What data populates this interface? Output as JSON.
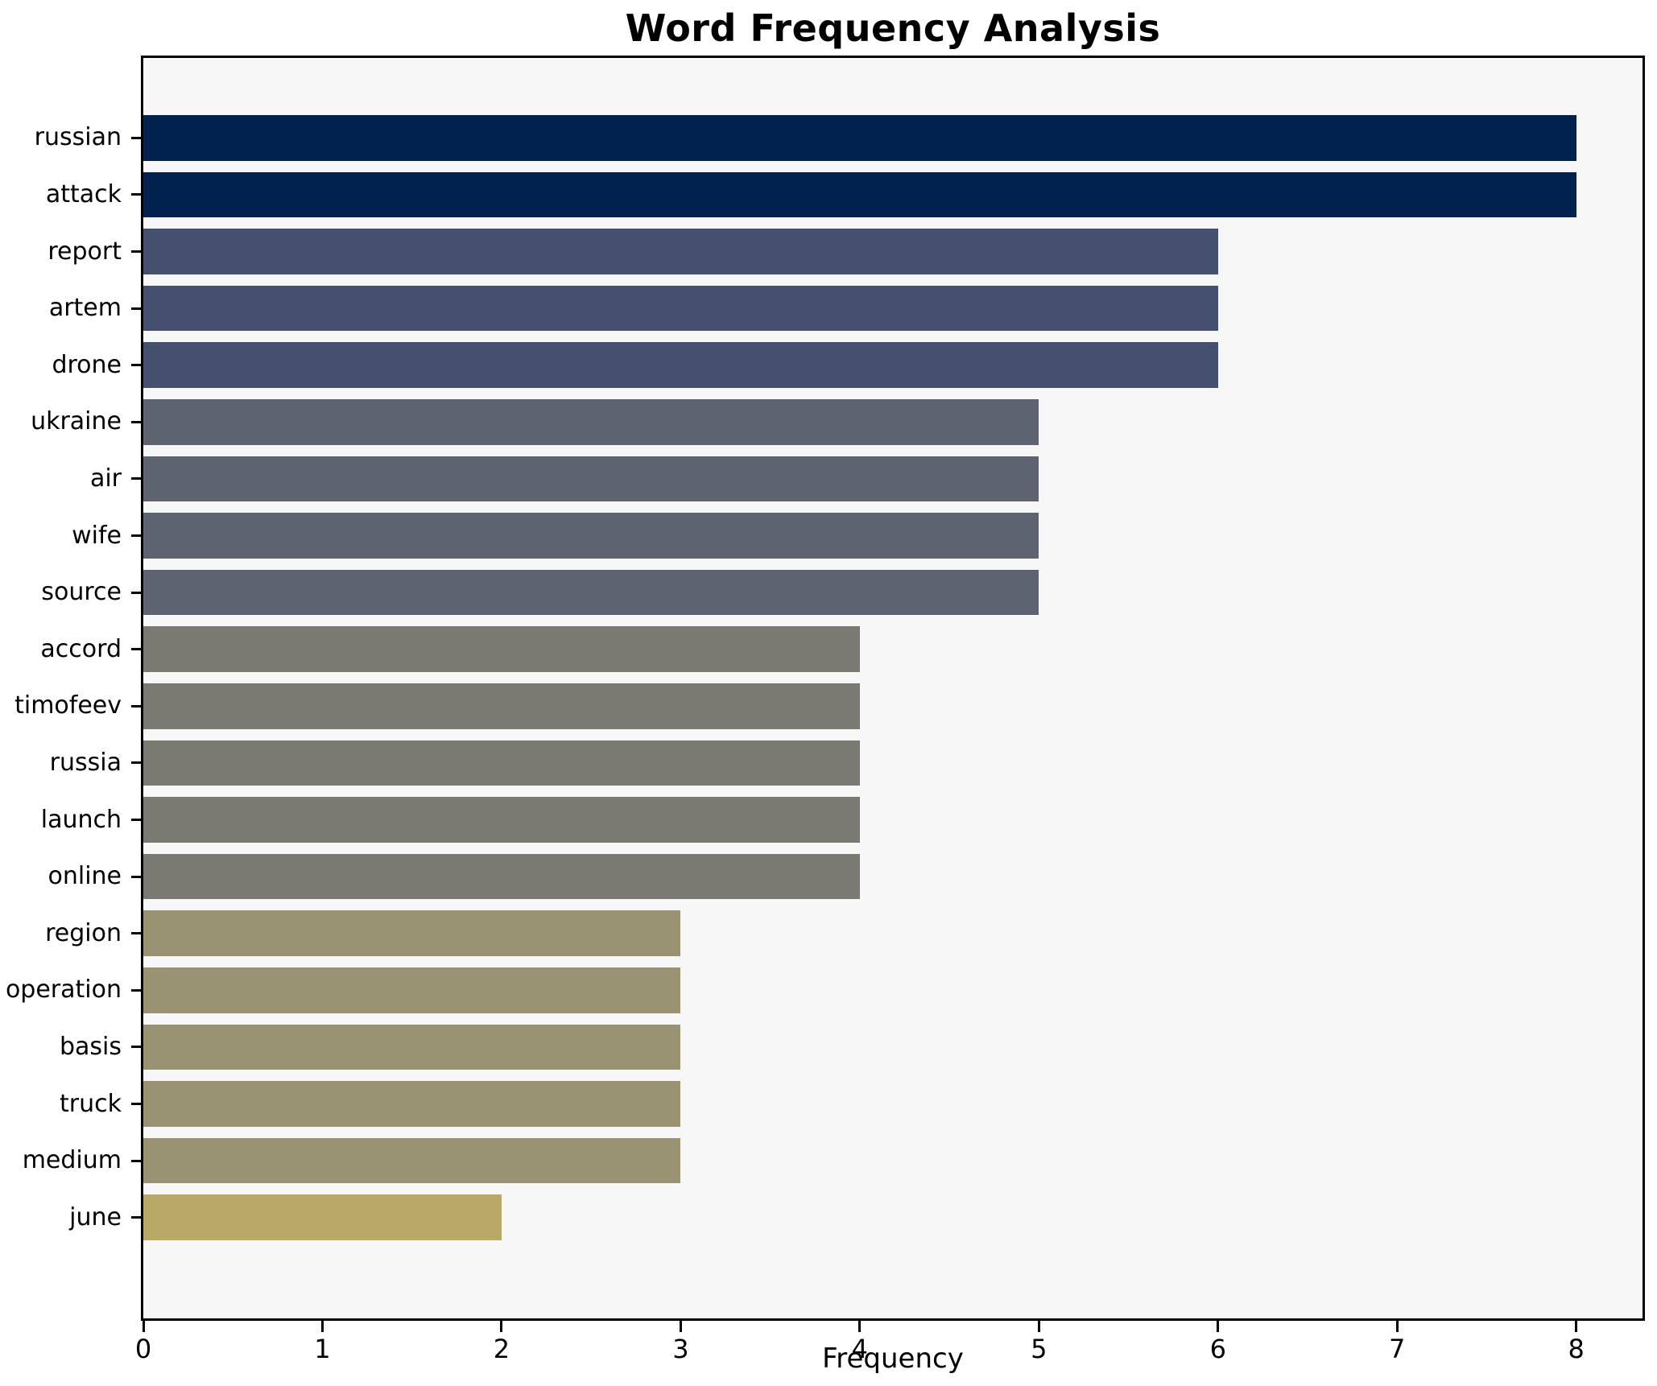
{
  "title": "Word Frequency Analysis",
  "chart_data": {
    "type": "bar",
    "orientation": "horizontal",
    "title": "Word Frequency Analysis",
    "xlabel": "Frequency",
    "ylabel": "",
    "categories": [
      "russian",
      "attack",
      "report",
      "artem",
      "drone",
      "ukraine",
      "air",
      "wife",
      "source",
      "accord",
      "timofeev",
      "russia",
      "launch",
      "online",
      "region",
      "operation",
      "basis",
      "truck",
      "medium",
      "june"
    ],
    "values": [
      8,
      8,
      6,
      6,
      6,
      5,
      5,
      5,
      5,
      4,
      4,
      4,
      4,
      4,
      3,
      3,
      3,
      3,
      3,
      2
    ],
    "bar_colors": [
      "#01224f",
      "#01224f",
      "#45506e",
      "#45506e",
      "#45506e",
      "#5e6370",
      "#5e6370",
      "#5e6370",
      "#5e6370",
      "#7a7a72",
      "#7a7a72",
      "#7a7a72",
      "#7a7a72",
      "#7a7a72",
      "#999273",
      "#999273",
      "#999273",
      "#999273",
      "#999273",
      "#b9a968"
    ],
    "xticks": [
      0,
      1,
      2,
      3,
      4,
      5,
      6,
      7,
      8
    ],
    "xtick_labels": [
      "0",
      "1",
      "2",
      "3",
      "4",
      "5",
      "6",
      "7",
      "8"
    ],
    "xlim": [
      0,
      8.37
    ],
    "grid": false,
    "legend_visible": false,
    "plot_background": "#f7f7f7",
    "spine_color": "#000000",
    "colormap_hint": "cividis"
  }
}
